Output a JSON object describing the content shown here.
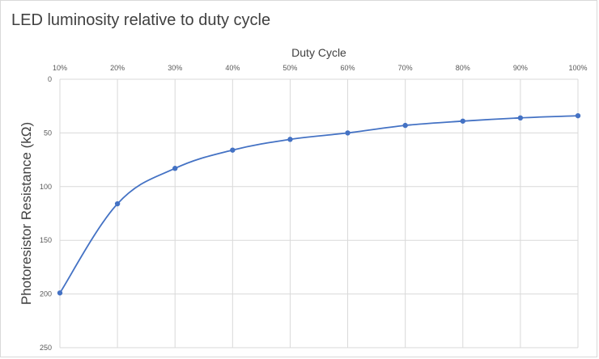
{
  "chart_data": {
    "type": "line",
    "title": "LED luminosity relative to duty cycle",
    "xlabel": "Duty Cycle",
    "ylabel": "Photoresistor Resistance (kΩ)",
    "x": [
      "10%",
      "20%",
      "30%",
      "40%",
      "50%",
      "60%",
      "70%",
      "80%",
      "90%",
      "100%"
    ],
    "series": [
      {
        "values": [
          199,
          116,
          83,
          66,
          56,
          50,
          43,
          39,
          36,
          34
        ],
        "color": "#4472c4"
      }
    ],
    "ylim": [
      0,
      250
    ],
    "y_ticks": [
      0,
      50,
      100,
      150,
      200,
      250
    ],
    "y_inverted": true,
    "x_axis_position": "top",
    "grid": true,
    "smooth": true,
    "markers": true
  }
}
